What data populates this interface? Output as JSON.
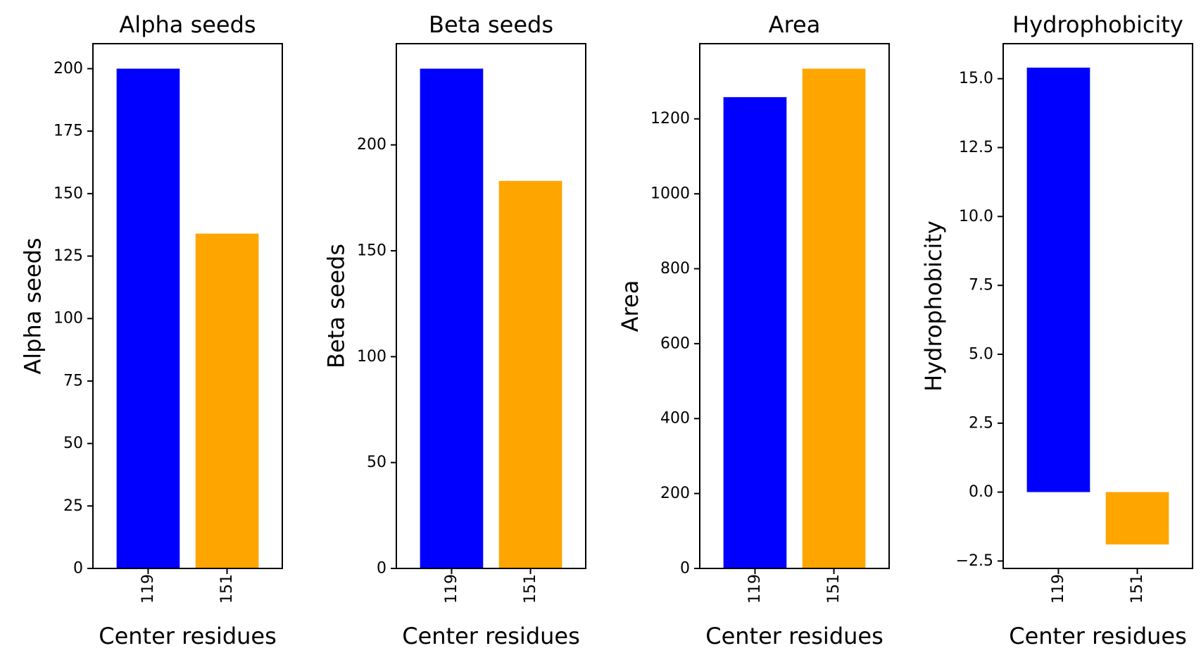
{
  "colors": {
    "series_119": "#0000ff",
    "series_151": "#ffa500",
    "axis": "#000000",
    "background": "#ffffff"
  },
  "chart_data": [
    {
      "type": "bar",
      "title": "Alpha seeds",
      "xlabel": "Center residues",
      "ylabel": "Alpha seeds",
      "categories": [
        "119",
        "151"
      ],
      "values": [
        200,
        134
      ],
      "ylim": [
        0,
        210
      ],
      "yticks": [
        0,
        25,
        50,
        75,
        100,
        125,
        150,
        175,
        200
      ],
      "ytick_labels": [
        "0",
        "25",
        "50",
        "75",
        "100",
        "125",
        "150",
        "175",
        "200"
      ],
      "colors": [
        "#0000ff",
        "#ffa500"
      ],
      "grid": false
    },
    {
      "type": "bar",
      "title": "Beta seeds",
      "xlabel": "Center residues",
      "ylabel": "Beta seeds",
      "categories": [
        "119",
        "151"
      ],
      "values": [
        236,
        183
      ],
      "ylim": [
        0,
        247.8
      ],
      "yticks": [
        0,
        50,
        100,
        150,
        200
      ],
      "ytick_labels": [
        "0",
        "50",
        "100",
        "150",
        "200"
      ],
      "colors": [
        "#0000ff",
        "#ffa500"
      ],
      "grid": false
    },
    {
      "type": "bar",
      "title": "Area",
      "xlabel": "Center residues",
      "ylabel": "Area",
      "categories": [
        "119",
        "151"
      ],
      "values": [
        1258,
        1334
      ],
      "ylim": [
        0,
        1400.7
      ],
      "yticks": [
        0,
        200,
        400,
        600,
        800,
        1000,
        1200
      ],
      "ytick_labels": [
        "0",
        "200",
        "400",
        "600",
        "800",
        "1000",
        "1200"
      ],
      "colors": [
        "#0000ff",
        "#ffa500"
      ],
      "grid": false
    },
    {
      "type": "bar",
      "title": "Hydrophobicity",
      "xlabel": "Center residues",
      "ylabel": "Hydrophobicity",
      "categories": [
        "119",
        "151"
      ],
      "values": [
        15.4,
        -1.9
      ],
      "ylim": [
        -2.77,
        16.27
      ],
      "yticks": [
        -2.5,
        0.0,
        2.5,
        5.0,
        7.5,
        10.0,
        12.5,
        15.0
      ],
      "ytick_labels": [
        "−2.5",
        "0.0",
        "2.5",
        "5.0",
        "7.5",
        "10.0",
        "12.5",
        "15.0"
      ],
      "colors": [
        "#0000ff",
        "#ffa500"
      ],
      "grid": false
    }
  ]
}
